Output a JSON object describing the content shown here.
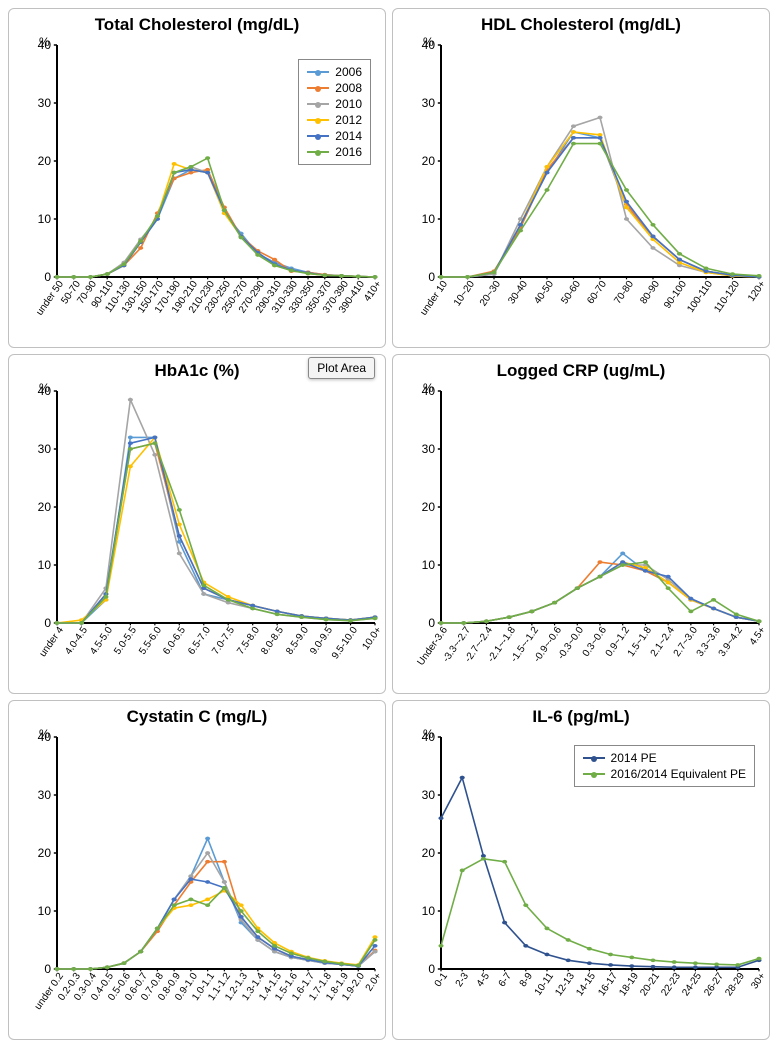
{
  "global": {
    "background_color": "#ffffff",
    "panel_border_color": "#c0c0c0",
    "axis_color": "#000000",
    "text_color": "#000000",
    "title_fontsize": 17,
    "tick_fontsize": 11,
    "legend_fontsize": 12,
    "line_width": 1.6,
    "marker_size": 3
  },
  "series_palette": {
    "2006": "#5b9bd5",
    "2008": "#ed7d31",
    "2010": "#a5a5a5",
    "2012": "#ffc000",
    "2014": "#4472c4",
    "2016": "#70ad47",
    "2014 PE": "#2f528f",
    "2016/2014 Equivalent PE": "#70ad47"
  },
  "charts": [
    {
      "id": "tc",
      "title": "Total Cholesterol (mg/dL)",
      "type": "line",
      "y_unit_label": "%",
      "ylim": [
        0,
        40
      ],
      "ytick_step": 10,
      "legend": {
        "show": true,
        "pos": "top-right",
        "items": [
          "2006",
          "2008",
          "2010",
          "2012",
          "2014",
          "2016"
        ]
      },
      "series_keys": [
        "2006",
        "2008",
        "2010",
        "2012",
        "2014",
        "2016"
      ],
      "categories": [
        "under 50",
        "50-70",
        "70-90",
        "90-110",
        "110-130",
        "130-150",
        "150-170",
        "170-190",
        "190-210",
        "210-230",
        "230-250",
        "250-270",
        "270-290",
        "290-310",
        "310-330",
        "330-350",
        "350-370",
        "370-390",
        "390-410",
        "410+"
      ],
      "series": {
        "2006": [
          0,
          0,
          0,
          0.5,
          2,
          6,
          10,
          17,
          18.5,
          18,
          11,
          7.5,
          4,
          2.5,
          1.5,
          0.8,
          0.4,
          0.2,
          0.1,
          0
        ],
        "2008": [
          0,
          0,
          0,
          0.5,
          2,
          5,
          11,
          17,
          18,
          18.5,
          12,
          7,
          4.5,
          3,
          1,
          0.8,
          0.4,
          0.2,
          0.1,
          0
        ],
        "2010": [
          0,
          0,
          0,
          0.5,
          2.5,
          6.5,
          10,
          18,
          19,
          18,
          11.5,
          7,
          4,
          2,
          1.2,
          0.6,
          0.3,
          0.2,
          0.1,
          0
        ],
        "2012": [
          0,
          0,
          0,
          0.5,
          2,
          6,
          10.5,
          19.5,
          18.5,
          18,
          11,
          7,
          4,
          2,
          1.2,
          0.6,
          0.3,
          0.2,
          0.1,
          0
        ],
        "2014": [
          0,
          0,
          0,
          0.5,
          2,
          6,
          10,
          18,
          18.5,
          18,
          11.5,
          7,
          4.2,
          2.2,
          1.2,
          0.7,
          0.3,
          0.2,
          0.1,
          0
        ],
        "2016": [
          0,
          0,
          0,
          0.5,
          2.2,
          6.2,
          10.5,
          18,
          19,
          20.5,
          11.5,
          6.8,
          3.8,
          2,
          1.1,
          0.6,
          0.3,
          0.2,
          0.1,
          0
        ]
      }
    },
    {
      "id": "hdl",
      "title": "HDL Cholesterol (mg/dL)",
      "type": "line",
      "y_unit_label": "%",
      "ylim": [
        0,
        40
      ],
      "ytick_step": 10,
      "legend": {
        "show": false
      },
      "series_keys": [
        "2006",
        "2008",
        "2010",
        "2012",
        "2014",
        "2016"
      ],
      "categories": [
        "under 10",
        "10~20",
        "20~30",
        "30-40",
        "40-50",
        "50-60",
        "60-70",
        "70-80",
        "80-90",
        "90-100",
        "100-110",
        "110-120",
        "120+"
      ],
      "series": {
        "2006": [
          0,
          0,
          0.5,
          9,
          18,
          25,
          24,
          12,
          7,
          3,
          1,
          0.3,
          0
        ],
        "2008": [
          0,
          0,
          1,
          8.5,
          18.5,
          24,
          24,
          12.5,
          7,
          3,
          1,
          0.3,
          0
        ],
        "2010": [
          0,
          0,
          0.5,
          10,
          19,
          26,
          27.5,
          10,
          5,
          2,
          0.8,
          0.2,
          0
        ],
        "2012": [
          0,
          0,
          0.8,
          9,
          19,
          25,
          24.5,
          12,
          6.5,
          2.5,
          0.8,
          0.2,
          0
        ],
        "2014": [
          0,
          0,
          0.8,
          9,
          18,
          24,
          24,
          13,
          7,
          3,
          1,
          0.3,
          0
        ],
        "2016": [
          0,
          0,
          0.8,
          8,
          15,
          23,
          23,
          15,
          9,
          4,
          1.5,
          0.5,
          0.2
        ]
      }
    },
    {
      "id": "hba1c",
      "title": "HbA1c (%)",
      "type": "line",
      "y_unit_label": "%",
      "ylim": [
        0,
        40
      ],
      "ytick_step": 10,
      "legend": {
        "show": false
      },
      "plot_area_button": "Plot Area",
      "series_keys": [
        "2006",
        "2008",
        "2010",
        "2012",
        "2014",
        "2016"
      ],
      "categories": [
        "under 4",
        "4.0-4.5",
        "4.5-5.0",
        "5.0-5.5",
        "5.5-6.0",
        "6.0-6.5",
        "6.5-7.0",
        "7.0-7.5",
        "7.5-8.0",
        "8.0-8.5",
        "8.5-9.0",
        "9.0-9.5",
        "9.5-10.0",
        "10.0+"
      ],
      "series": {
        "2006": [
          0,
          0,
          4,
          32,
          32,
          14,
          5,
          4,
          3,
          2,
          1.2,
          0.8,
          0.5,
          1
        ],
        "2008": [
          0,
          0,
          5,
          30,
          31,
          15,
          6,
          4,
          3,
          2,
          1.2,
          0.8,
          0.5,
          1
        ],
        "2010": [
          0,
          0,
          6,
          38.5,
          29,
          12,
          5,
          3.5,
          2.5,
          1.5,
          1,
          0.6,
          0.4,
          0.8
        ],
        "2012": [
          0,
          0.5,
          4,
          27,
          32,
          17,
          7,
          4.5,
          3,
          2,
          1.2,
          0.8,
          0.5,
          1
        ],
        "2014": [
          0,
          0,
          5,
          31,
          32,
          15,
          6,
          4,
          3,
          2,
          1.2,
          0.8,
          0.5,
          1
        ],
        "2016": [
          0,
          0,
          4.5,
          30,
          31,
          19.5,
          6.5,
          4,
          2.5,
          1.5,
          1,
          0.6,
          0.4,
          0.8
        ]
      }
    },
    {
      "id": "crp",
      "title": "Logged CRP (ug/mL)",
      "type": "line",
      "y_unit_label": "%",
      "ylim": [
        0,
        40
      ],
      "ytick_step": 10,
      "legend": {
        "show": false
      },
      "series_keys": [
        "2006",
        "2008",
        "2010",
        "2012",
        "2014",
        "2016"
      ],
      "categories": [
        "Under-3.6",
        "-3.3~-2.7",
        "-2.7~-2.4",
        "-2.1~-1.8",
        "-1.5~-1.2",
        "-0.9~-0.6",
        "-0.3~0.0",
        "0.3~0.6",
        "0.9~1.2",
        "1.5~1.8",
        "2.1~2.4",
        "2.7~3.0",
        "3.3~3.6",
        "3.9~4.2",
        "4.5+"
      ],
      "series": {
        "2006": [
          0,
          0,
          0.3,
          1,
          2,
          3.5,
          6,
          8,
          12,
          9,
          7,
          4,
          2.5,
          1,
          0.3
        ],
        "2008": [
          0,
          0,
          0.3,
          1,
          2,
          3.5,
          6,
          10.5,
          10,
          9,
          7,
          4,
          2.5,
          1,
          0.3
        ],
        "2010": [
          0,
          0,
          0.3,
          1,
          2,
          3.5,
          6,
          8,
          10,
          10,
          7.5,
          4.2,
          2.5,
          1,
          0.3
        ],
        "2012": [
          0,
          0,
          0.3,
          1,
          2,
          3.5,
          6,
          8,
          10.5,
          9.5,
          7,
          4,
          2.5,
          1,
          0.3
        ],
        "2014": [
          0,
          0,
          0.3,
          1,
          2,
          3.5,
          6,
          8,
          10.5,
          9,
          8,
          4.2,
          2.5,
          1,
          0.3
        ],
        "2016": [
          0,
          0,
          0.3,
          1,
          2,
          3.5,
          6,
          8,
          10,
          10.5,
          6,
          2,
          4,
          1.5,
          0.3
        ]
      }
    },
    {
      "id": "cystc",
      "title": "Cystatin C (mg/L)",
      "type": "line",
      "y_unit_label": "%",
      "ylim": [
        0,
        40
      ],
      "ytick_step": 10,
      "legend": {
        "show": false
      },
      "series_keys": [
        "2006",
        "2008",
        "2010",
        "2012",
        "2014",
        "2016"
      ],
      "categories": [
        "under 0.2",
        "0.2-0.3",
        "0.3-0.4",
        "0.4-0.5",
        "0.5-0.6",
        "0.6-0.7",
        "0.7-0.8",
        "0.8-0.9",
        "0.9-1.0",
        "1.0-1.1",
        "1.1-1.2",
        "1.2-1.3",
        "1.3-1.4",
        "1.4-1.5",
        "1.5-1.6",
        "1.6-1.7",
        "1.7-1.8",
        "1.8-1.9",
        "1.9-2.0",
        "2.0+"
      ],
      "series": {
        "2006": [
          0,
          0,
          0,
          0.3,
          1,
          3,
          7,
          12,
          16,
          22.5,
          15,
          8,
          5,
          3,
          2,
          1.5,
          1,
          0.8,
          0.5,
          3
        ],
        "2008": [
          0,
          0,
          0,
          0.3,
          1,
          3,
          6.5,
          11,
          15,
          18.5,
          18.5,
          9,
          5.5,
          3.5,
          2.2,
          1.6,
          1.1,
          0.8,
          0.5,
          3.2
        ],
        "2010": [
          0,
          0,
          0,
          0.3,
          1,
          3,
          7,
          12,
          16,
          20,
          15,
          8.5,
          5,
          3,
          2,
          1.5,
          1,
          0.8,
          0.5,
          3
        ],
        "2012": [
          0,
          0,
          0,
          0.3,
          1,
          3,
          7,
          10.5,
          11,
          12,
          13.5,
          11,
          7,
          4.5,
          3,
          2,
          1.4,
          1,
          0.7,
          5.5
        ],
        "2014": [
          0,
          0,
          0,
          0.3,
          1,
          3,
          7,
          12,
          15.5,
          15,
          14,
          9,
          5.5,
          3.5,
          2.2,
          1.6,
          1.1,
          0.8,
          0.5,
          4
        ],
        "2016": [
          0,
          0,
          0,
          0.3,
          1,
          3,
          7,
          11,
          12,
          11,
          14,
          10,
          6.5,
          4,
          2.7,
          1.9,
          1.3,
          0.9,
          0.6,
          5
        ]
      }
    },
    {
      "id": "il6",
      "title": "IL-6 (pg/mL)",
      "type": "line",
      "y_unit_label": "%",
      "ylim": [
        0,
        40
      ],
      "ytick_step": 10,
      "legend": {
        "show": true,
        "pos": "top-right",
        "items": [
          "2014 PE",
          "2016/2014 Equivalent PE"
        ]
      },
      "series_keys": [
        "2014 PE",
        "2016/2014 Equivalent PE"
      ],
      "categories": [
        "0-1",
        "2-3",
        "4-5",
        "6-7",
        "8-9",
        "10-11",
        "12-13",
        "14-15",
        "16-17",
        "18-19",
        "20-21",
        "22-23",
        "24-25",
        "26-27",
        "28-29",
        "30+"
      ],
      "series": {
        "2014 PE": [
          26,
          33,
          19.5,
          8,
          4,
          2.5,
          1.5,
          1,
          0.7,
          0.5,
          0.4,
          0.3,
          0.3,
          0.3,
          0.3,
          1.5
        ],
        "2016/2014 Equivalent PE": [
          4,
          17,
          19,
          18.5,
          11,
          7,
          5,
          3.5,
          2.5,
          2,
          1.5,
          1.2,
          1,
          0.8,
          0.7,
          1.8
        ]
      }
    }
  ]
}
